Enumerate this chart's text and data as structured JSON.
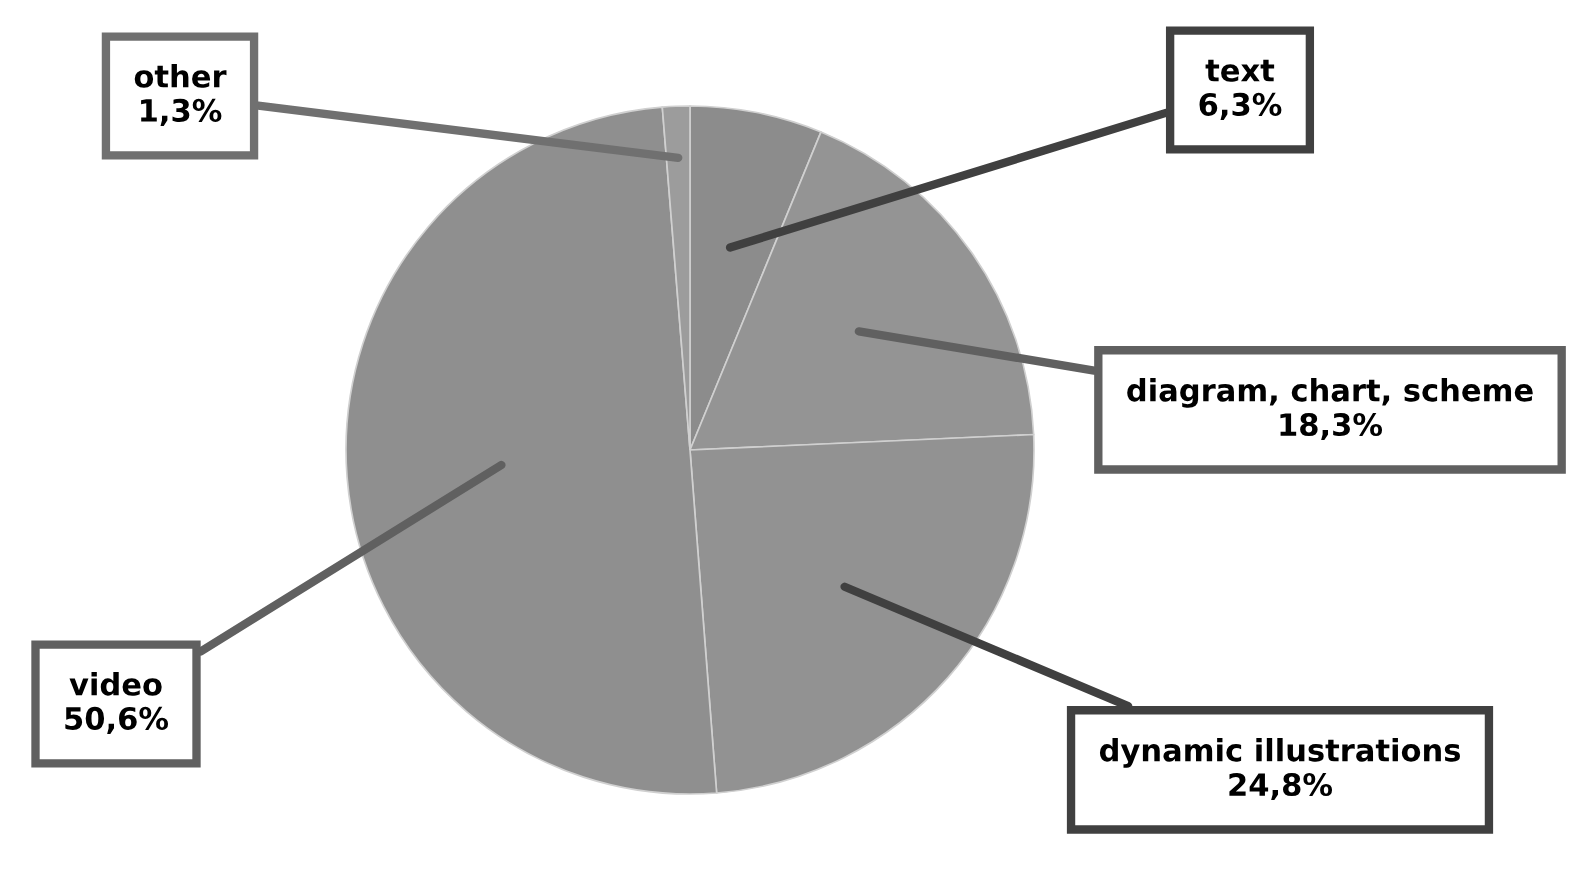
{
  "chart_data": {
    "type": "pie",
    "categories": [
      "text",
      "diagram, chart, scheme",
      "dynamic illustrations",
      "video",
      "other"
    ],
    "values": [
      6.3,
      18.3,
      24.8,
      50.6,
      1.3
    ],
    "value_labels": [
      "6,3%",
      "18,3%",
      "24,8%",
      "50,6%",
      "1,3%"
    ],
    "colors": [
      "#8c8c8c",
      "#949494",
      "#929292",
      "#8f8f8f",
      "#9c9c9c"
    ],
    "legend": false
  }
}
